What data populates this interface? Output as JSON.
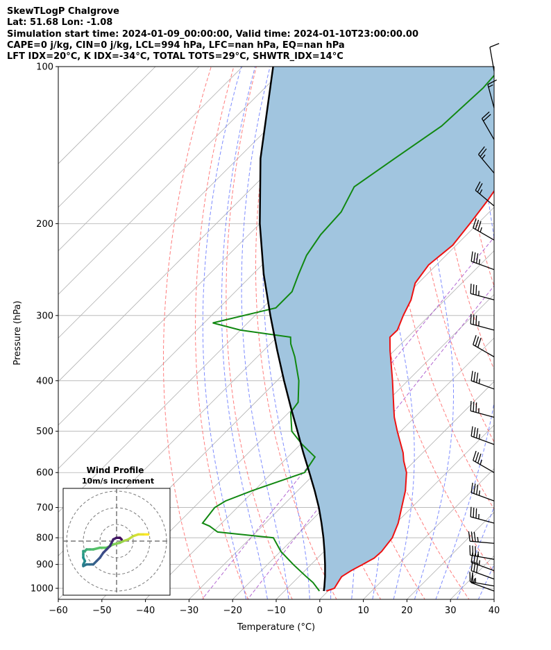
{
  "header": {
    "line1": "SkewTLogP Chalgrove",
    "line2": "Lat: 51.68   Lon: -1.08",
    "line3": "Simulation start time: 2024-01-09_00:00:00, Valid time: 2024-01-10T23:00:00.00",
    "line4": "CAPE=0 j/kg, CIN=0 j/kg, LCL=994 hPa, LFC=nan hPa, EQ=nan hPa",
    "line5": "LFT IDX=20°C, K IDX=-34°C, TOTAL TOTS=29°C, SHWTR_IDX=14°C"
  },
  "colors": {
    "temperature": "#ee1111",
    "dewpoint": "#118811",
    "parcel": "#000000",
    "shading": "#a1c5df",
    "dry_adiabat": "#ff6666",
    "moist_adiabat": "#6677ff",
    "mixing_ratio": "#aa55cc",
    "isotherm": "#b0b0b0",
    "grid": "#b0b0b0"
  },
  "chart_data": {
    "type": "line",
    "title": "",
    "xlabel": "Temperature (°C)",
    "ylabel": "Pressure (hPa)",
    "xlim": [
      -60,
      40
    ],
    "ylim": [
      1050,
      100
    ],
    "yscale": "log",
    "skew": "isotherms tilted 45°",
    "x_ticks": [
      -60,
      -50,
      -40,
      -30,
      -20,
      -10,
      0,
      10,
      20,
      30,
      40
    ],
    "y_ticks": [
      1000,
      900,
      800,
      700,
      600,
      500,
      400,
      300,
      200,
      100
    ],
    "grid": true,
    "series": [
      {
        "role": "temperature",
        "points": [
          [
            1012,
            -0.4
          ],
          [
            1000,
            0.8
          ],
          [
            975,
            0.3
          ],
          [
            950,
            -0.2
          ],
          [
            925,
            0.6
          ],
          [
            900,
            1.8
          ],
          [
            875,
            3.0
          ],
          [
            850,
            3.2
          ],
          [
            800,
            2.5
          ],
          [
            750,
            0.5
          ],
          [
            700,
            -2.3
          ],
          [
            650,
            -5.3
          ],
          [
            600,
            -9.2
          ],
          [
            570,
            -12.5
          ],
          [
            550,
            -14.5
          ],
          [
            500,
            -20.8
          ],
          [
            470,
            -24.7
          ],
          [
            450,
            -27.1
          ],
          [
            400,
            -33.5
          ],
          [
            350,
            -41.0
          ],
          [
            330,
            -44.1
          ],
          [
            320,
            -44.0
          ],
          [
            300,
            -46.0
          ],
          [
            280,
            -47.8
          ],
          [
            260,
            -50.7
          ],
          [
            240,
            -51.8
          ],
          [
            220,
            -50.8
          ],
          [
            200,
            -51.8
          ],
          [
            180,
            -53.1
          ],
          [
            160,
            -55.0
          ],
          [
            140,
            -57.0
          ],
          [
            120,
            -58.6
          ],
          [
            110,
            -59.6
          ],
          [
            100,
            -59.8
          ]
        ]
      },
      {
        "role": "dewpoint",
        "points": [
          [
            1012,
            -2.0
          ],
          [
            975,
            -5.4
          ],
          [
            950,
            -8.3
          ],
          [
            900,
            -14.1
          ],
          [
            850,
            -19.9
          ],
          [
            800,
            -24.8
          ],
          [
            780,
            -38.9
          ],
          [
            760,
            -42.1
          ],
          [
            750,
            -44.4
          ],
          [
            700,
            -45.2
          ],
          [
            680,
            -44.2
          ],
          [
            650,
            -40.5
          ],
          [
            600,
            -32.6
          ],
          [
            560,
            -33.8
          ],
          [
            530,
            -39.6
          ],
          [
            500,
            -45.0
          ],
          [
            460,
            -49.6
          ],
          [
            440,
            -50.2
          ],
          [
            400,
            -55.0
          ],
          [
            360,
            -61.4
          ],
          [
            340,
            -65.3
          ],
          [
            330,
            -66.9
          ],
          [
            320,
            -80.0
          ],
          [
            310,
            -88.0
          ],
          [
            290,
            -77.0
          ],
          [
            270,
            -77.0
          ],
          [
            250,
            -79.5
          ],
          [
            230,
            -82.0
          ],
          [
            210,
            -83.5
          ],
          [
            190,
            -84.0
          ],
          [
            170,
            -86.8
          ],
          [
            150,
            -84.0
          ],
          [
            130,
            -80.7
          ],
          [
            110,
            -79.9
          ],
          [
            100,
            -80.5
          ]
        ]
      },
      {
        "role": "parcel",
        "points": [
          [
            1012,
            -1.0
          ],
          [
            994,
            -1.8
          ],
          [
            950,
            -4.0
          ],
          [
            900,
            -6.8
          ],
          [
            850,
            -9.9
          ],
          [
            800,
            -13.3
          ],
          [
            750,
            -17.1
          ],
          [
            700,
            -21.3
          ],
          [
            650,
            -26.1
          ],
          [
            600,
            -31.5
          ],
          [
            550,
            -37.4
          ],
          [
            500,
            -43.7
          ],
          [
            450,
            -50.7
          ],
          [
            400,
            -58.4
          ],
          [
            350,
            -66.9
          ],
          [
            300,
            -76.5
          ],
          [
            250,
            -87.5
          ],
          [
            200,
            -100.0
          ],
          [
            150,
            -114.8
          ],
          [
            100,
            -133.0
          ]
        ]
      }
    ],
    "wind_barbs": [
      {
        "p": 1012,
        "dir": 290,
        "kt": 15
      },
      {
        "p": 990,
        "dir": 280,
        "kt": 25
      },
      {
        "p": 960,
        "dir": 290,
        "kt": 30
      },
      {
        "p": 925,
        "dir": 290,
        "kt": 35
      },
      {
        "p": 880,
        "dir": 280,
        "kt": 35
      },
      {
        "p": 820,
        "dir": 275,
        "kt": 35
      },
      {
        "p": 750,
        "dir": 285,
        "kt": 35
      },
      {
        "p": 680,
        "dir": 290,
        "kt": 35
      },
      {
        "p": 600,
        "dir": 300,
        "kt": 35
      },
      {
        "p": 530,
        "dir": 290,
        "kt": 35
      },
      {
        "p": 470,
        "dir": 285,
        "kt": 35
      },
      {
        "p": 415,
        "dir": 290,
        "kt": 35
      },
      {
        "p": 360,
        "dir": 300,
        "kt": 30
      },
      {
        "p": 320,
        "dir": 285,
        "kt": 35
      },
      {
        "p": 280,
        "dir": 285,
        "kt": 35
      },
      {
        "p": 245,
        "dir": 290,
        "kt": 35
      },
      {
        "p": 215,
        "dir": 300,
        "kt": 35
      },
      {
        "p": 185,
        "dir": 310,
        "kt": 25
      },
      {
        "p": 160,
        "dir": 320,
        "kt": 25
      },
      {
        "p": 138,
        "dir": 330,
        "kt": 20
      },
      {
        "p": 120,
        "dir": 345,
        "kt": 15
      },
      {
        "p": 102,
        "dir": 350,
        "kt": 10
      }
    ],
    "hodograph": {
      "title": "Wind Profile",
      "subtitle": "10m/s increment",
      "ring_increment_ms": 10,
      "rings": 3,
      "points": [
        [
          19,
          -4
        ],
        [
          16,
          -4
        ],
        [
          13,
          -4
        ],
        [
          10,
          -3
        ],
        [
          7,
          -1
        ],
        [
          4,
          0
        ],
        [
          2,
          1
        ],
        [
          -2,
          2
        ],
        [
          -6,
          4
        ],
        [
          -10,
          4
        ],
        [
          -14,
          5
        ],
        [
          -16,
          5
        ],
        [
          -18,
          5
        ],
        [
          -19,
          6
        ],
        [
          -20,
          6
        ],
        [
          -20,
          8
        ],
        [
          -20,
          10
        ],
        [
          -19,
          12
        ],
        [
          -20,
          14
        ],
        [
          -20,
          15
        ],
        [
          -18,
          14
        ],
        [
          -16,
          14
        ],
        [
          -14,
          14
        ],
        [
          -12,
          12
        ],
        [
          -10,
          10
        ],
        [
          -8,
          7
        ],
        [
          -6,
          5
        ],
        [
          -4,
          3
        ],
        [
          -3,
          1
        ],
        [
          -2,
          -1
        ],
        [
          0,
          -2
        ],
        [
          2,
          -2
        ],
        [
          3,
          -1
        ]
      ],
      "point_colors": [
        "#440154",
        "#3b528b",
        "#21918c",
        "#5ec962",
        "#fde725"
      ]
    }
  }
}
